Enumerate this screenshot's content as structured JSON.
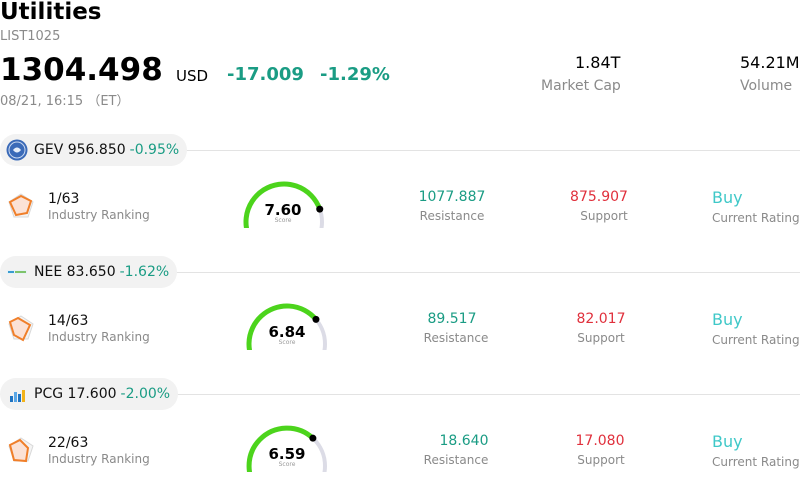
{
  "header": {
    "title": "Utilities",
    "code": "LIST1025",
    "price": "1304.498",
    "currency": "USD",
    "change": "-17.009",
    "change_pct": "-1.29%",
    "timestamp": "08/21, 16:15 （ET）",
    "market_cap_value": "1.84T",
    "market_cap_label": "Market Cap",
    "volume_value": "54.21M",
    "volume_label": "Volume"
  },
  "stocks": [
    {
      "symbol": "GEV",
      "price": "956.850",
      "change_pct": "-0.95%",
      "rank": "1/63",
      "rank_label": "Industry Ranking",
      "score": "7.60",
      "score_label": "Score",
      "score_value": 7.6,
      "resistance": "1077.887",
      "resistance_label": "Resistance",
      "support": "875.907",
      "support_label": "Support",
      "rating": "Buy",
      "rating_label": "Current Rating"
    },
    {
      "symbol": "NEE",
      "price": "83.650",
      "change_pct": "-1.62%",
      "rank": "14/63",
      "rank_label": "Industry Ranking",
      "score": "6.84",
      "score_label": "Score",
      "score_value": 6.84,
      "resistance": "89.517",
      "resistance_label": "Resistance",
      "support": "82.017",
      "support_label": "Support",
      "rating": "Buy",
      "rating_label": "Current Rating"
    },
    {
      "symbol": "PCG",
      "price": "17.600",
      "change_pct": "-2.00%",
      "rank": "22/63",
      "rank_label": "Industry Ranking",
      "score": "6.59",
      "score_label": "Score",
      "score_value": 6.59,
      "resistance": "18.640",
      "resistance_label": "Resistance",
      "support": "17.080",
      "support_label": "Support",
      "rating": "Buy",
      "rating_label": "Current Rating"
    }
  ],
  "colors": {
    "up_green": "#1a9c84",
    "down_red": "#e0303c",
    "gauge_green": "#4cd41c",
    "gauge_track": "#dcdce6",
    "buy_teal": "#3fc8c8"
  },
  "icons": {
    "GEV": "ge-logo-icon",
    "NEE": "nee-logo-icon",
    "PCG": "pcg-logo-icon",
    "rank": "radar-chart-icon"
  }
}
